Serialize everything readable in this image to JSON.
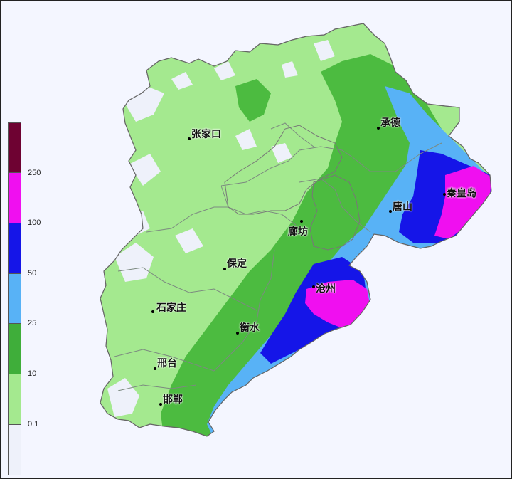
{
  "colors": {
    "background": "#f4f6ff",
    "province_base": "#a4e98f",
    "land_light": "#eef1fa",
    "green_mid": "#57c245",
    "green_dark": "#3fae3a",
    "sky": "#58b2f6",
    "blue": "#1515e8",
    "magenta": "#f00ff0",
    "maroon": "#6e0232",
    "border": "#888888"
  },
  "cities": [
    {
      "name": "张家口"
    },
    {
      "name": "承德"
    },
    {
      "name": "秦皇岛"
    },
    {
      "name": "唐山"
    },
    {
      "name": "廊坊"
    },
    {
      "name": "保定"
    },
    {
      "name": "沧州"
    },
    {
      "name": "石家庄"
    },
    {
      "name": "衡水"
    },
    {
      "name": "邢台"
    },
    {
      "name": "邯郸"
    }
  ],
  "legend": [
    {
      "label": "250",
      "color": "#6e0232"
    },
    {
      "label": "100",
      "color": "#f00ff0"
    },
    {
      "label": "50",
      "color": "#1515e8"
    },
    {
      "label": "25",
      "color": "#58b2f6"
    },
    {
      "label": "10",
      "color": "#3fae3a"
    },
    {
      "label": "0.1",
      "color": "#a4e98f"
    },
    {
      "label": "",
      "color": "#eef1fa"
    }
  ]
}
